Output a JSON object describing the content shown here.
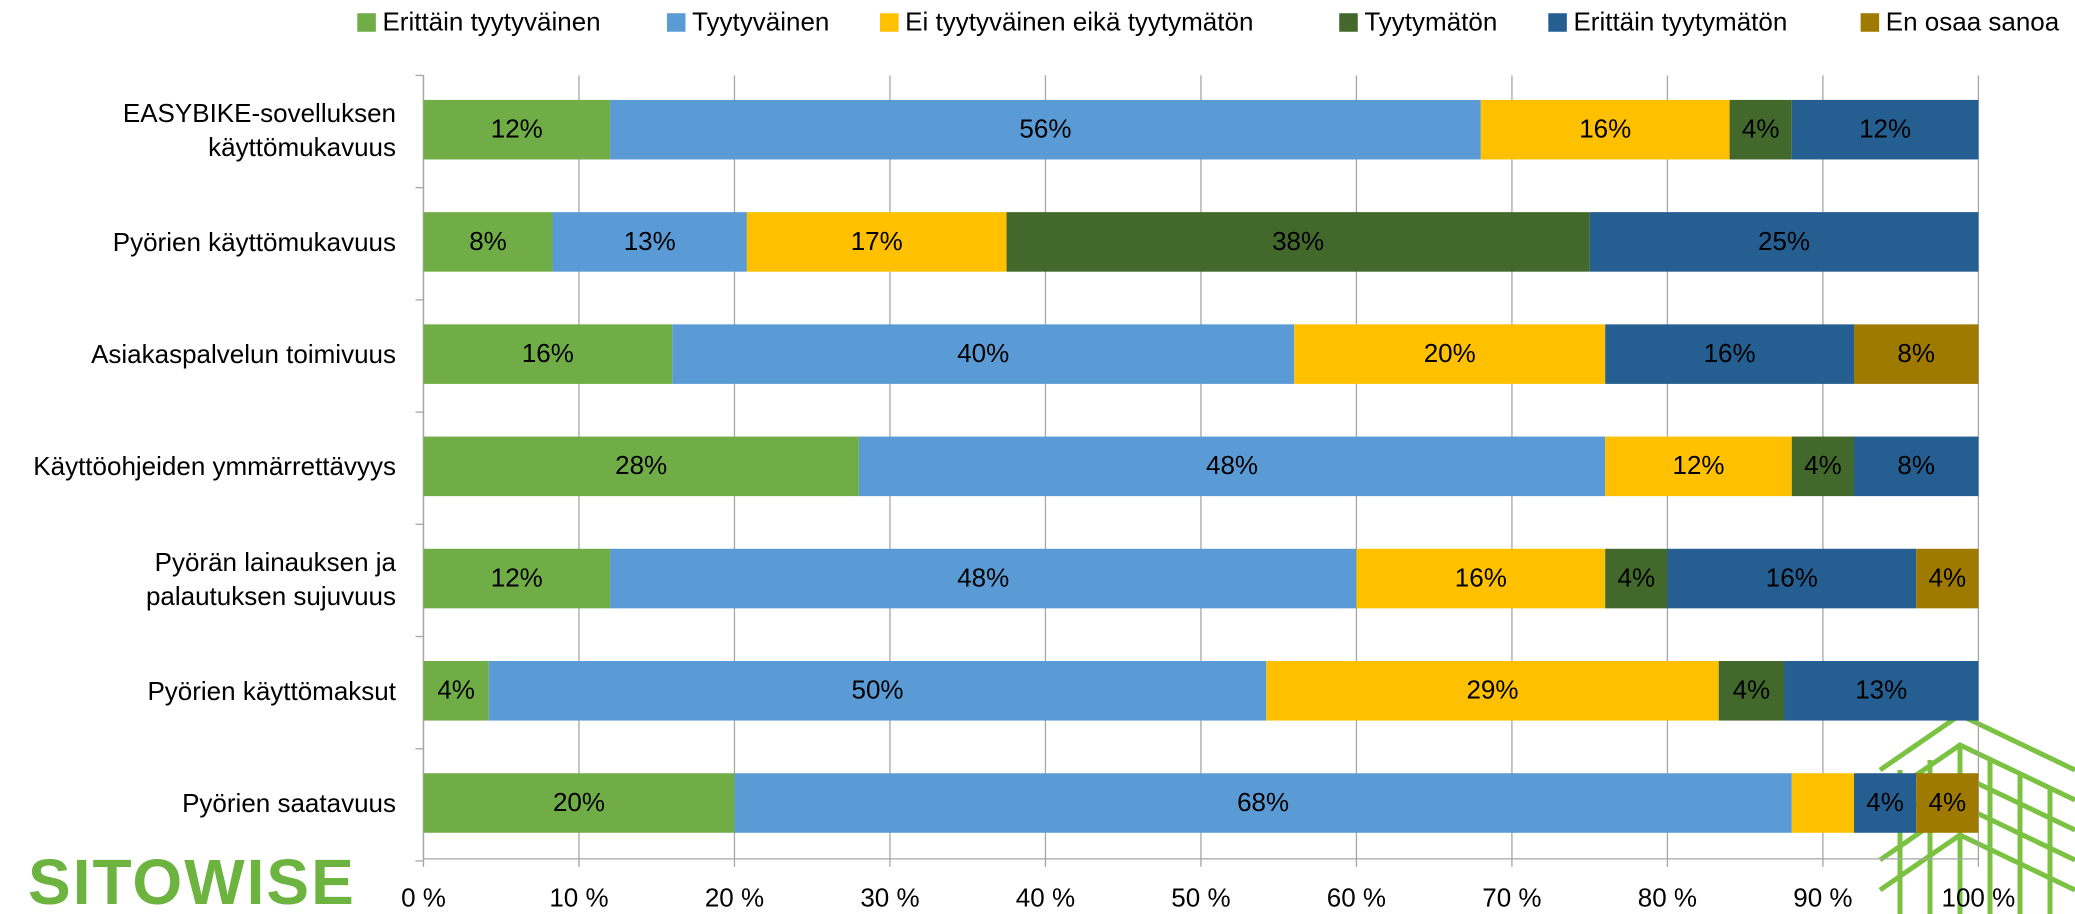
{
  "chart_data": {
    "type": "stacked-bar-horizontal",
    "categories": [
      "EASYBIKE-sovelluksen\nkäyttömukavuus",
      "Pyörien käyttömukavuus",
      "Asiakaspalvelun toimivuus",
      "Käyttöohjeiden ymmärrettävyys",
      "Pyörän lainauksen ja\npalautuksen sujuvuus",
      "Pyörien käyttömaksut",
      "Pyörien saatavuus"
    ],
    "series": [
      {
        "name": "Erittäin tyytyväinen",
        "color": "#70ad47",
        "values": [
          12,
          8.3,
          16,
          28,
          12,
          4.2,
          20
        ],
        "value_labels": [
          "12%",
          "8%",
          "16%",
          "28%",
          "12%",
          "4%",
          "20%"
        ]
      },
      {
        "name": "Tyytyväinen",
        "color": "#5b9bd5",
        "values": [
          56,
          12.5,
          40,
          48,
          48,
          50,
          68
        ],
        "value_labels": [
          "56%",
          "13%",
          "40%",
          "48%",
          "48%",
          "50%",
          "68%"
        ]
      },
      {
        "name": "Ei tyytyväinen eikä tyytymätön",
        "color": "#ffc000",
        "values": [
          16,
          16.7,
          20,
          12,
          16,
          29.1,
          4
        ],
        "value_labels": [
          "16%",
          "17%",
          "20%",
          "12%",
          "16%",
          "29%",
          null
        ]
      },
      {
        "name": "Tyytymätön",
        "color": "#43682b",
        "values": [
          4,
          37.5,
          null,
          4,
          4,
          4.2,
          null
        ],
        "value_labels": [
          "4%",
          "38%",
          null,
          "4%",
          "4%",
          "4%",
          null
        ]
      },
      {
        "name": "Erittäin tyytymätön",
        "color": "#255e91",
        "values": [
          12,
          25,
          16,
          8,
          16,
          12.5,
          4
        ],
        "value_labels": [
          "12%",
          "25%",
          "16%",
          "8%",
          "16%",
          "13%",
          "4%"
        ]
      },
      {
        "name": "En osaa sanoa",
        "color": "#9e7a00",
        "values": [
          null,
          null,
          8,
          null,
          4,
          null,
          4
        ],
        "value_labels": [
          null,
          null,
          "8%",
          null,
          "4%",
          null,
          "4%"
        ]
      }
    ],
    "xlim": [
      0,
      100
    ],
    "xticks": [
      {
        "value": 0,
        "label": "0 %"
      },
      {
        "value": 10,
        "label": "10 %"
      },
      {
        "value": 20,
        "label": "20 %"
      },
      {
        "value": 30,
        "label": "30 %"
      },
      {
        "value": 40,
        "label": "40 %"
      },
      {
        "value": 50,
        "label": "50 %"
      },
      {
        "value": 60,
        "label": "60 %"
      },
      {
        "value": 70,
        "label": "70 %"
      },
      {
        "value": 80,
        "label": "80 %"
      },
      {
        "value": 90,
        "label": "90 %"
      },
      {
        "value": 100,
        "label": "100 %"
      }
    ],
    "grid": true,
    "legend": "top"
  },
  "logo": "SITOWISE"
}
